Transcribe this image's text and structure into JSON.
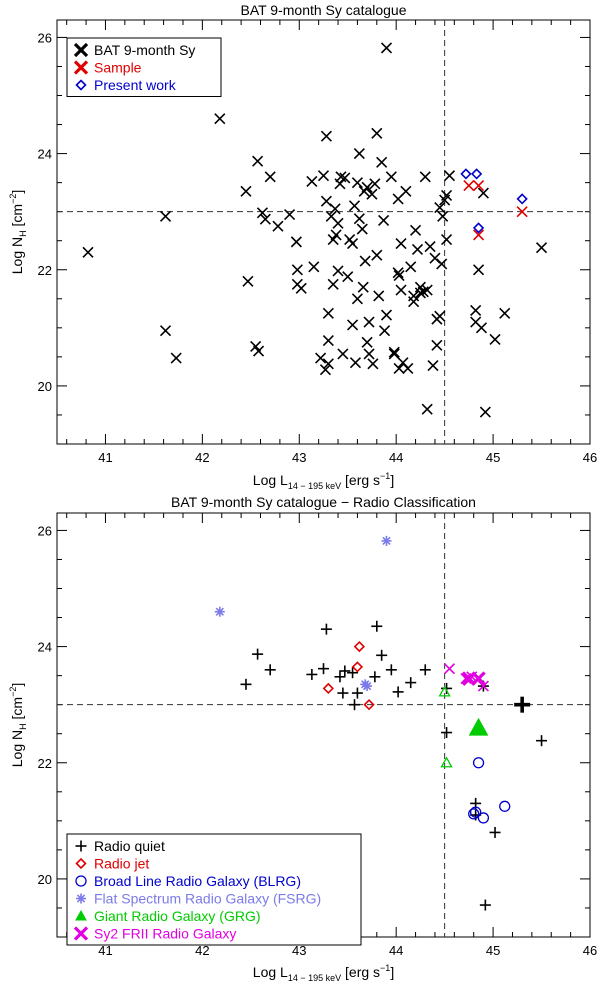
{
  "chart_data": [
    {
      "type": "scatter",
      "title": "BAT 9-month Sy catalogue",
      "xlabel": "Log L",
      "xlabel_sub": "14 − 195 keV",
      "xlabel_unit": " [erg s",
      "xlabel_unit_sup": "−1",
      "xlabel_unit_end": "]",
      "ylabel": "Log N",
      "ylabel_sub": "H",
      "ylabel_unit": " [cm",
      "ylabel_unit_sup": "−2",
      "ylabel_unit_end": "]",
      "xlim": [
        40.5,
        46
      ],
      "ylim": [
        19,
        26.3
      ],
      "xticks": [
        "41",
        "42",
        "43",
        "44",
        "45",
        "46"
      ],
      "yticks": [
        "20",
        "22",
        "24",
        "26"
      ],
      "vline": 44.5,
      "hline": 23,
      "legend": [
        {
          "label": "BAT 9-month Sy",
          "marker": "x",
          "color": "#000000"
        },
        {
          "label": "Sample",
          "marker": "x",
          "color": "#e00000"
        },
        {
          "label": "Present work",
          "marker": "diamond",
          "color": "#0000cc"
        }
      ],
      "series": [
        {
          "name": "BAT 9-month Sy",
          "marker": "x",
          "color": "#000000",
          "points": [
            [
              40.82,
              22.3
            ],
            [
              41.62,
              22.92
            ],
            [
              41.62,
              20.95
            ],
            [
              41.73,
              20.48
            ],
            [
              42.18,
              24.6
            ],
            [
              42.45,
              23.35
            ],
            [
              42.47,
              21.8
            ],
            [
              42.55,
              20.68
            ],
            [
              42.57,
              23.87
            ],
            [
              42.58,
              20.6
            ],
            [
              42.62,
              22.98
            ],
            [
              42.65,
              22.87
            ],
            [
              42.7,
              23.6
            ],
            [
              42.78,
              22.75
            ],
            [
              42.9,
              22.95
            ],
            [
              42.97,
              22.48
            ],
            [
              42.98,
              22.0
            ],
            [
              42.98,
              21.75
            ],
            [
              43.02,
              21.68
            ],
            [
              43.13,
              23.52
            ],
            [
              43.15,
              22.05
            ],
            [
              43.22,
              20.48
            ],
            [
              43.25,
              23.62
            ],
            [
              43.27,
              20.28
            ],
            [
              43.28,
              23.18
            ],
            [
              43.28,
              24.3
            ],
            [
              43.3,
              21.25
            ],
            [
              43.3,
              20.78
            ],
            [
              43.3,
              20.38
            ],
            [
              43.33,
              22.92
            ],
            [
              43.35,
              22.52
            ],
            [
              43.35,
              21.75
            ],
            [
              43.37,
              23.05
            ],
            [
              43.38,
              22.6
            ],
            [
              43.4,
              22.8
            ],
            [
              43.4,
              21.98
            ],
            [
              43.42,
              23.48
            ],
            [
              43.43,
              23.6
            ],
            [
              43.45,
              20.55
            ],
            [
              43.47,
              23.58
            ],
            [
              43.5,
              21.88
            ],
            [
              43.52,
              22.52
            ],
            [
              43.55,
              22.45
            ],
            [
              43.55,
              21.05
            ],
            [
              43.57,
              23.1
            ],
            [
              43.58,
              20.4
            ],
            [
              43.6,
              23.5
            ],
            [
              43.6,
              21.5
            ],
            [
              43.62,
              22.88
            ],
            [
              43.62,
              24.0
            ],
            [
              43.65,
              22.7
            ],
            [
              43.66,
              21.7
            ],
            [
              43.67,
              23.35
            ],
            [
              43.68,
              22.15
            ],
            [
              43.7,
              23.42
            ],
            [
              43.7,
              20.75
            ],
            [
              43.72,
              21.1
            ],
            [
              43.72,
              20.55
            ],
            [
              43.75,
              23.3
            ],
            [
              43.76,
              20.38
            ],
            [
              43.78,
              23.48
            ],
            [
              43.8,
              22.25
            ],
            [
              43.8,
              24.35
            ],
            [
              43.82,
              21.55
            ],
            [
              43.85,
              23.85
            ],
            [
              43.87,
              22.85
            ],
            [
              43.88,
              20.95
            ],
            [
              43.9,
              21.22
            ],
            [
              43.9,
              25.82
            ],
            [
              43.95,
              23.6
            ],
            [
              43.98,
              20.55
            ],
            [
              43.98,
              20.58
            ],
            [
              44.02,
              23.22
            ],
            [
              44.02,
              21.95
            ],
            [
              44.03,
              21.9
            ],
            [
              44.03,
              20.3
            ],
            [
              44.05,
              22.45
            ],
            [
              44.05,
              21.65
            ],
            [
              44.07,
              20.4
            ],
            [
              44.1,
              23.35
            ],
            [
              44.12,
              20.3
            ],
            [
              44.15,
              22.05
            ],
            [
              44.18,
              21.55
            ],
            [
              44.18,
              21.45
            ],
            [
              44.2,
              22.68
            ],
            [
              44.22,
              22.35
            ],
            [
              44.25,
              21.7
            ],
            [
              44.25,
              21.6
            ],
            [
              44.28,
              21.62
            ],
            [
              44.3,
              23.6
            ],
            [
              44.32,
              21.65
            ],
            [
              44.32,
              19.6
            ],
            [
              44.35,
              22.4
            ],
            [
              44.38,
              20.35
            ],
            [
              44.4,
              22.2
            ],
            [
              44.42,
              21.15
            ],
            [
              44.42,
              20.7
            ],
            [
              44.45,
              21.2
            ],
            [
              44.45,
              23.07
            ],
            [
              44.47,
              22.1
            ],
            [
              44.48,
              22.92
            ],
            [
              44.5,
              23.2
            ],
            [
              44.52,
              23.28
            ],
            [
              44.52,
              22.52
            ],
            [
              44.55,
              23.62
            ],
            [
              44.82,
              21.3
            ],
            [
              44.82,
              21.1
            ],
            [
              44.85,
              22.0
            ],
            [
              44.88,
              21.0
            ],
            [
              44.9,
              23.32
            ],
            [
              44.92,
              19.55
            ],
            [
              45.02,
              20.8
            ],
            [
              45.12,
              21.25
            ],
            [
              45.5,
              22.38
            ]
          ]
        },
        {
          "name": "Sample",
          "marker": "x",
          "color": "#e00000",
          "points": [
            [
              44.75,
              23.45
            ],
            [
              44.85,
              23.45
            ],
            [
              44.85,
              22.6
            ],
            [
              45.3,
              23.0
            ]
          ]
        },
        {
          "name": "Present work",
          "marker": "diamond",
          "color": "#0000cc",
          "points": [
            [
              44.72,
              23.65
            ],
            [
              44.83,
              23.65
            ],
            [
              44.85,
              22.72
            ],
            [
              45.3,
              23.22
            ]
          ]
        }
      ]
    },
    {
      "type": "scatter",
      "title": "BAT 9-month Sy catalogue − Radio Classification",
      "xlabel": "Log L",
      "xlabel_sub": "14 − 195 keV",
      "xlabel_unit": " [erg s",
      "xlabel_unit_sup": "−1",
      "xlabel_unit_end": "]",
      "ylabel": "Log N",
      "ylabel_sub": "H",
      "ylabel_unit": " [cm",
      "ylabel_unit_sup": "−2",
      "ylabel_unit_end": "]",
      "xlim": [
        40.5,
        46
      ],
      "ylim": [
        19,
        26.3
      ],
      "xticks": [
        "41",
        "42",
        "43",
        "44",
        "45",
        "46"
      ],
      "yticks": [
        "20",
        "22",
        "24",
        "26"
      ],
      "vline": 44.5,
      "hline": 23,
      "legend": [
        {
          "label": "Radio quiet",
          "marker": "plus",
          "color": "#000000"
        },
        {
          "label": "Radio jet",
          "marker": "diamond",
          "color": "#e00000"
        },
        {
          "label": "Broad Line Radio Galaxy (BLRG)",
          "marker": "circle",
          "color": "#0000cc"
        },
        {
          "label": "Flat Spectrum Radio Galaxy (FSRG)",
          "marker": "asterisk",
          "color": "#7b7bea"
        },
        {
          "label": "Giant Radio Galaxy (GRG)",
          "marker": "triangle",
          "color": "#00cc00"
        },
        {
          "label": "Sy2 FRII Radio Galaxy",
          "marker": "x",
          "color": "#e000e0"
        }
      ],
      "series": [
        {
          "name": "Radio quiet",
          "marker": "plus",
          "color": "#000000",
          "points": [
            [
              42.45,
              23.35
            ],
            [
              42.57,
              23.87
            ],
            [
              42.7,
              23.6
            ],
            [
              43.13,
              23.52
            ],
            [
              43.25,
              23.62
            ],
            [
              43.28,
              24.3
            ],
            [
              43.42,
              23.48
            ],
            [
              43.45,
              23.2
            ],
            [
              43.47,
              23.58
            ],
            [
              43.55,
              23.55
            ],
            [
              43.57,
              23.0
            ],
            [
              43.6,
              23.2
            ],
            [
              43.8,
              24.35
            ],
            [
              43.78,
              23.48
            ],
            [
              43.85,
              23.85
            ],
            [
              43.95,
              23.6
            ],
            [
              44.02,
              23.22
            ],
            [
              44.15,
              23.38
            ],
            [
              44.3,
              23.6
            ],
            [
              44.52,
              22.52
            ],
            [
              44.52,
              23.28
            ],
            [
              44.82,
              21.3
            ],
            [
              44.82,
              21.1
            ],
            [
              44.9,
              23.32
            ],
            [
              44.92,
              19.55
            ],
            [
              45.02,
              20.8
            ],
            [
              45.5,
              22.38
            ]
          ]
        },
        {
          "name": "Radio quiet (present work)",
          "marker": "plus",
          "color": "#000000",
          "size": "large",
          "points": [
            [
              45.3,
              23.0
            ]
          ]
        },
        {
          "name": "Radio jet",
          "marker": "diamond",
          "color": "#e00000",
          "points": [
            [
              43.3,
              23.28
            ],
            [
              43.6,
              23.65
            ],
            [
              43.62,
              24.0
            ],
            [
              43.72,
              23.0
            ]
          ]
        },
        {
          "name": "Broad Line Radio Galaxy (BLRG)",
          "marker": "circle",
          "color": "#0000cc",
          "points": [
            [
              44.85,
              22.0
            ],
            [
              44.82,
              21.15
            ],
            [
              44.8,
              21.12
            ],
            [
              44.9,
              21.05
            ],
            [
              45.12,
              21.25
            ]
          ]
        },
        {
          "name": "Flat Spectrum Radio Galaxy (FSRG)",
          "marker": "asterisk",
          "color": "#7b7bea",
          "points": [
            [
              42.18,
              24.6
            ],
            [
              43.9,
              25.82
            ],
            [
              43.68,
              23.35
            ],
            [
              43.7,
              23.32
            ]
          ]
        },
        {
          "name": "Giant Radio Galaxy (GRG)",
          "marker": "triangle",
          "color": "#00cc00",
          "points": [
            [
              44.5,
              23.22
            ],
            [
              44.52,
              22.0
            ]
          ]
        },
        {
          "name": "Giant Radio Galaxy (GRG) (present work)",
          "marker": "triangle-filled",
          "color": "#00cc00",
          "size": "large",
          "points": [
            [
              44.85,
              22.6
            ]
          ]
        },
        {
          "name": "Sy2 FRII Radio Galaxy",
          "marker": "x",
          "color": "#e000e0",
          "points": [
            [
              44.55,
              23.62
            ],
            [
              44.72,
              23.45
            ],
            [
              44.75,
              23.42
            ],
            [
              44.78,
              23.48
            ],
            [
              44.85,
              23.45
            ],
            [
              44.9,
              23.32
            ]
          ]
        },
        {
          "name": "Sy2 FRII Radio Galaxy (present work)",
          "marker": "x",
          "color": "#e000e0",
          "size": "bold",
          "points": [
            [
              44.75,
              23.45
            ],
            [
              44.85,
              23.45
            ]
          ]
        }
      ]
    }
  ]
}
